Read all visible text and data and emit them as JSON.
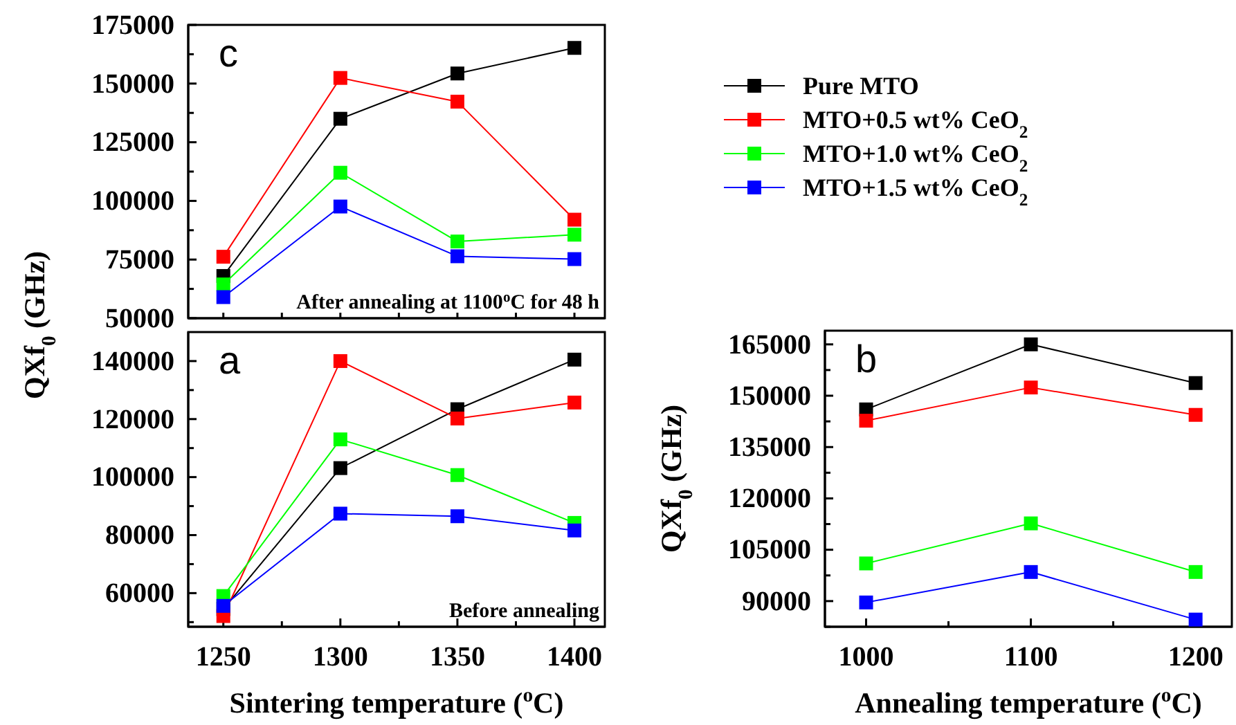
{
  "chart_data": [
    {
      "type": "line",
      "x": [
        1250,
        1300,
        1350,
        1400
      ],
      "xlim": [
        1235,
        1413
      ],
      "xticks": [
        {
          "value": 1250,
          "label": null
        },
        {
          "value": 1275,
          "label": null
        },
        {
          "value": 1300,
          "label": null
        },
        {
          "value": 1325,
          "label": null
        },
        {
          "value": 1350,
          "label": null
        },
        {
          "value": 1375,
          "label": null
        },
        {
          "value": 1400,
          "label": null
        }
      ],
      "ylim": [
        50000,
        175000
      ],
      "yticks": [
        50000,
        {
          "value": 62500,
          "label": null
        },
        75000,
        {
          "value": 87500,
          "label": null
        },
        100000,
        {
          "value": 112500,
          "label": null
        },
        125000,
        {
          "value": 137500,
          "label": null
        },
        150000,
        {
          "value": 162500,
          "label": null
        },
        175000
      ],
      "tick_labels": "y",
      "marker": "square",
      "line_style": "solid",
      "legend": "right",
      "grid": false,
      "annotations": [
        "c",
        "After annealing at 1100$^{o}$C for 48 h"
      ],
      "series": [
        {
          "name": "Pure MTO",
          "color": "#000000",
          "values": [
            68000,
            135000,
            154300,
            165200
          ]
        },
        {
          "name": "MTO+0.5 wt% CeO$_{2}$",
          "color": "#ff0000",
          "values": [
            76200,
            152400,
            142300,
            92000
          ]
        },
        {
          "name": "MTO+1.0 wt% CeO$_{2}$",
          "color": "#00ff00",
          "values": [
            64400,
            112000,
            82700,
            85600
          ]
        },
        {
          "name": "MTO+1.5 wt% CeO$_{2}$",
          "color": "#0000ff",
          "values": [
            59000,
            97600,
            76400,
            75200
          ]
        }
      ]
    },
    {
      "type": "line",
      "x": [
        1250,
        1300,
        1350,
        1400
      ],
      "xlim": [
        1235,
        1413
      ],
      "xticks": [
        1250,
        {
          "value": 1275,
          "label": null
        },
        1300,
        {
          "value": 1325,
          "label": null
        },
        1350,
        {
          "value": 1375,
          "label": null
        },
        1400
      ],
      "ylim": [
        48400,
        150000
      ],
      "yticks": [
        {
          "value": 50000,
          "label": null
        },
        60000,
        {
          "value": 70000,
          "label": null
        },
        80000,
        {
          "value": 90000,
          "label": null
        },
        100000,
        {
          "value": 110000,
          "label": null
        },
        120000,
        {
          "value": 130000,
          "label": null
        },
        140000
      ],
      "xlabel": "Sintering temperature ($^{o}$C)",
      "ylabel": "QXf$_{0}$ (GHz)",
      "marker": "square",
      "line_style": "solid",
      "grid": false,
      "annotations": [
        "a",
        "Before annealing"
      ],
      "series": [
        {
          "color": "#000000",
          "values": [
            54500,
            103100,
            123400,
            140500
          ]
        },
        {
          "color": "#ff0000",
          "values": [
            52100,
            140000,
            120200,
            125700
          ]
        },
        {
          "color": "#00ff00",
          "values": [
            59000,
            113000,
            100700,
            84200
          ]
        },
        {
          "color": "#0000ff",
          "values": [
            55600,
            87400,
            86500,
            81600
          ]
        }
      ]
    },
    {
      "type": "line",
      "x": [
        1000,
        1100,
        1200
      ],
      "xlim": [
        975,
        1222
      ],
      "xticks": [
        1000,
        {
          "value": 1050,
          "label": null
        },
        1100,
        {
          "value": 1150,
          "label": null
        },
        1200
      ],
      "ylim": [
        82500,
        169000
      ],
      "yticks": [
        {
          "value": 82500,
          "label": null
        },
        90000,
        {
          "value": 97500,
          "label": null
        },
        105000,
        {
          "value": 112500,
          "label": null
        },
        120000,
        {
          "value": 127500,
          "label": null
        },
        135000,
        {
          "value": 142500,
          "label": null
        },
        150000,
        {
          "value": 157500,
          "label": null
        },
        165000
      ],
      "xlabel": "Annealing temperature ($^{o}$C)",
      "ylabel": "QXf$_{0}$ (GHz)",
      "marker": "square",
      "line_style": "solid",
      "grid": false,
      "annotations": [
        "b"
      ],
      "series": [
        {
          "color": "#000000",
          "values": [
            146000,
            165000,
            153700
          ]
        },
        {
          "color": "#ff0000",
          "values": [
            142700,
            152400,
            144400
          ]
        },
        {
          "color": "#00ff00",
          "values": [
            101000,
            112700,
            98500
          ]
        },
        {
          "color": "#0000ff",
          "values": [
            89600,
            98500,
            84600
          ]
        }
      ]
    }
  ]
}
